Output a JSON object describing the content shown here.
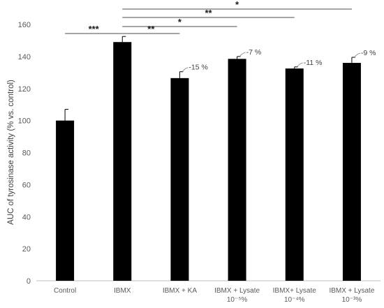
{
  "chart_data": {
    "type": "bar",
    "title": "",
    "xlabel": "",
    "ylabel": "AUC of tyrosinase activity (% vs. control)",
    "ylim": [
      0,
      160
    ],
    "yticks": [
      0,
      20,
      40,
      60,
      80,
      100,
      120,
      140,
      160
    ],
    "grid": false,
    "bar_color": "#000000",
    "categories": [
      {
        "line1": "Control",
        "line2": ""
      },
      {
        "line1": "IBMX",
        "line2": ""
      },
      {
        "line1": "IBMX + KA",
        "line2": ""
      },
      {
        "line1": "IBMX + Lysate",
        "line2": "10⁻⁵%"
      },
      {
        "line1": "IBMX+ Lysate",
        "line2": "10⁻⁴%"
      },
      {
        "line1": "IBMX + Lysate",
        "line2": "10⁻³%"
      }
    ],
    "values": [
      100,
      149,
      126.5,
      138.5,
      132.5,
      136
    ],
    "errors": [
      7,
      3.5,
      4,
      1.5,
      1,
      3.5
    ],
    "bar_labels": [
      "",
      "",
      "-15 %",
      "-7 %",
      "-11 %",
      "-9 %"
    ],
    "significance": [
      {
        "from": 0,
        "to": 1,
        "label": "***"
      },
      {
        "from": 1,
        "to": 2,
        "label": "**"
      },
      {
        "from": 1,
        "to": 3,
        "label": "*"
      },
      {
        "from": 1,
        "to": 4,
        "label": "**"
      },
      {
        "from": 1,
        "to": 5,
        "label": "*"
      }
    ]
  }
}
